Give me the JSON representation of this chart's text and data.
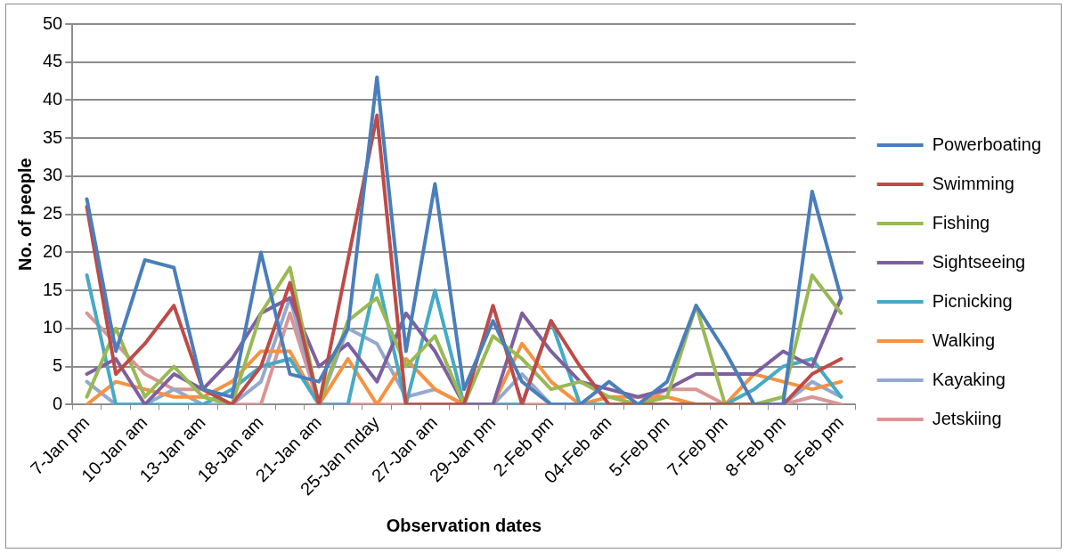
{
  "chart_data": {
    "type": "line",
    "xlabel": "Observation dates",
    "ylabel": "No. of people",
    "categories": [
      "7-Jan pm",
      null,
      "10-Jan am",
      null,
      "13-Jan am",
      null,
      "18-Jan am",
      null,
      "21-Jan am",
      null,
      "25-Jan mday",
      null,
      "27-Jan am",
      null,
      "29-Jan pm",
      null,
      "2-Feb pm",
      null,
      "04-Feb am",
      null,
      "5-Feb pm",
      null,
      "7-Feb pm",
      null,
      "8-Feb pm",
      null,
      "9-Feb pm"
    ],
    "series": [
      {
        "name": "Powerboating",
        "color": "#4a7ebb",
        "values": [
          27,
          7,
          19,
          18,
          2,
          1,
          20,
          4,
          3,
          10,
          43,
          7,
          29,
          2,
          11,
          3,
          0,
          0,
          3,
          0,
          3,
          13,
          7,
          0,
          0,
          28,
          14
        ]
      },
      {
        "name": "Swimming",
        "color": "#be4b48",
        "values": [
          26,
          4,
          8,
          13,
          2,
          0,
          5,
          16,
          0,
          19,
          38,
          0,
          0,
          0,
          13,
          0,
          11,
          5,
          0,
          0,
          0,
          0,
          0,
          0,
          0,
          4,
          6
        ]
      },
      {
        "name": "Fishing",
        "color": "#98b954",
        "values": [
          1,
          10,
          1,
          5,
          1,
          0,
          12,
          18,
          0,
          11,
          14,
          5,
          9,
          0,
          9,
          6,
          2,
          3,
          1,
          0,
          1,
          13,
          0,
          0,
          1,
          17,
          12
        ]
      },
      {
        "name": "Sightseeing",
        "color": "#7d60a0",
        "values": [
          4,
          6,
          0,
          4,
          2,
          6,
          12,
          14,
          5,
          8,
          3,
          12,
          7,
          0,
          0,
          12,
          7,
          3,
          2,
          1,
          2,
          4,
          4,
          4,
          7,
          5,
          14
        ]
      },
      {
        "name": "Picnicking",
        "color": "#46aac5",
        "values": [
          17,
          0,
          0,
          0,
          0,
          2,
          5,
          6,
          0,
          0,
          17,
          0,
          15,
          0,
          0,
          0,
          11,
          0,
          0,
          0,
          0,
          0,
          0,
          2,
          5,
          6,
          1
        ]
      },
      {
        "name": "Walking",
        "color": "#f69240",
        "values": [
          0,
          3,
          2,
          1,
          1,
          3,
          7,
          7,
          0,
          6,
          0,
          6,
          2,
          0,
          0,
          8,
          3,
          0,
          1,
          1,
          1,
          0,
          0,
          4,
          3,
          2,
          3
        ]
      },
      {
        "name": "Kayaking",
        "color": "#93a9cf",
        "values": [
          3,
          0,
          0,
          2,
          0,
          0,
          3,
          14,
          0,
          10,
          8,
          1,
          2,
          0,
          0,
          4,
          0,
          0,
          0,
          0,
          0,
          0,
          0,
          0,
          0,
          3,
          1
        ]
      },
      {
        "name": "Jetskiing",
        "color": "#d99694",
        "values": [
          12,
          8,
          4,
          2,
          2,
          0,
          0,
          12,
          0,
          0,
          0,
          0,
          0,
          0,
          0,
          0,
          0,
          0,
          0,
          0,
          2,
          2,
          0,
          0,
          0,
          1,
          0
        ]
      }
    ],
    "ylim": [
      0,
      50
    ],
    "yticks": [
      0,
      5,
      10,
      15,
      20,
      25,
      30,
      35,
      40,
      45,
      50
    ],
    "grid": "y",
    "legend": "right",
    "marker": "none",
    "line_style": "solid"
  }
}
